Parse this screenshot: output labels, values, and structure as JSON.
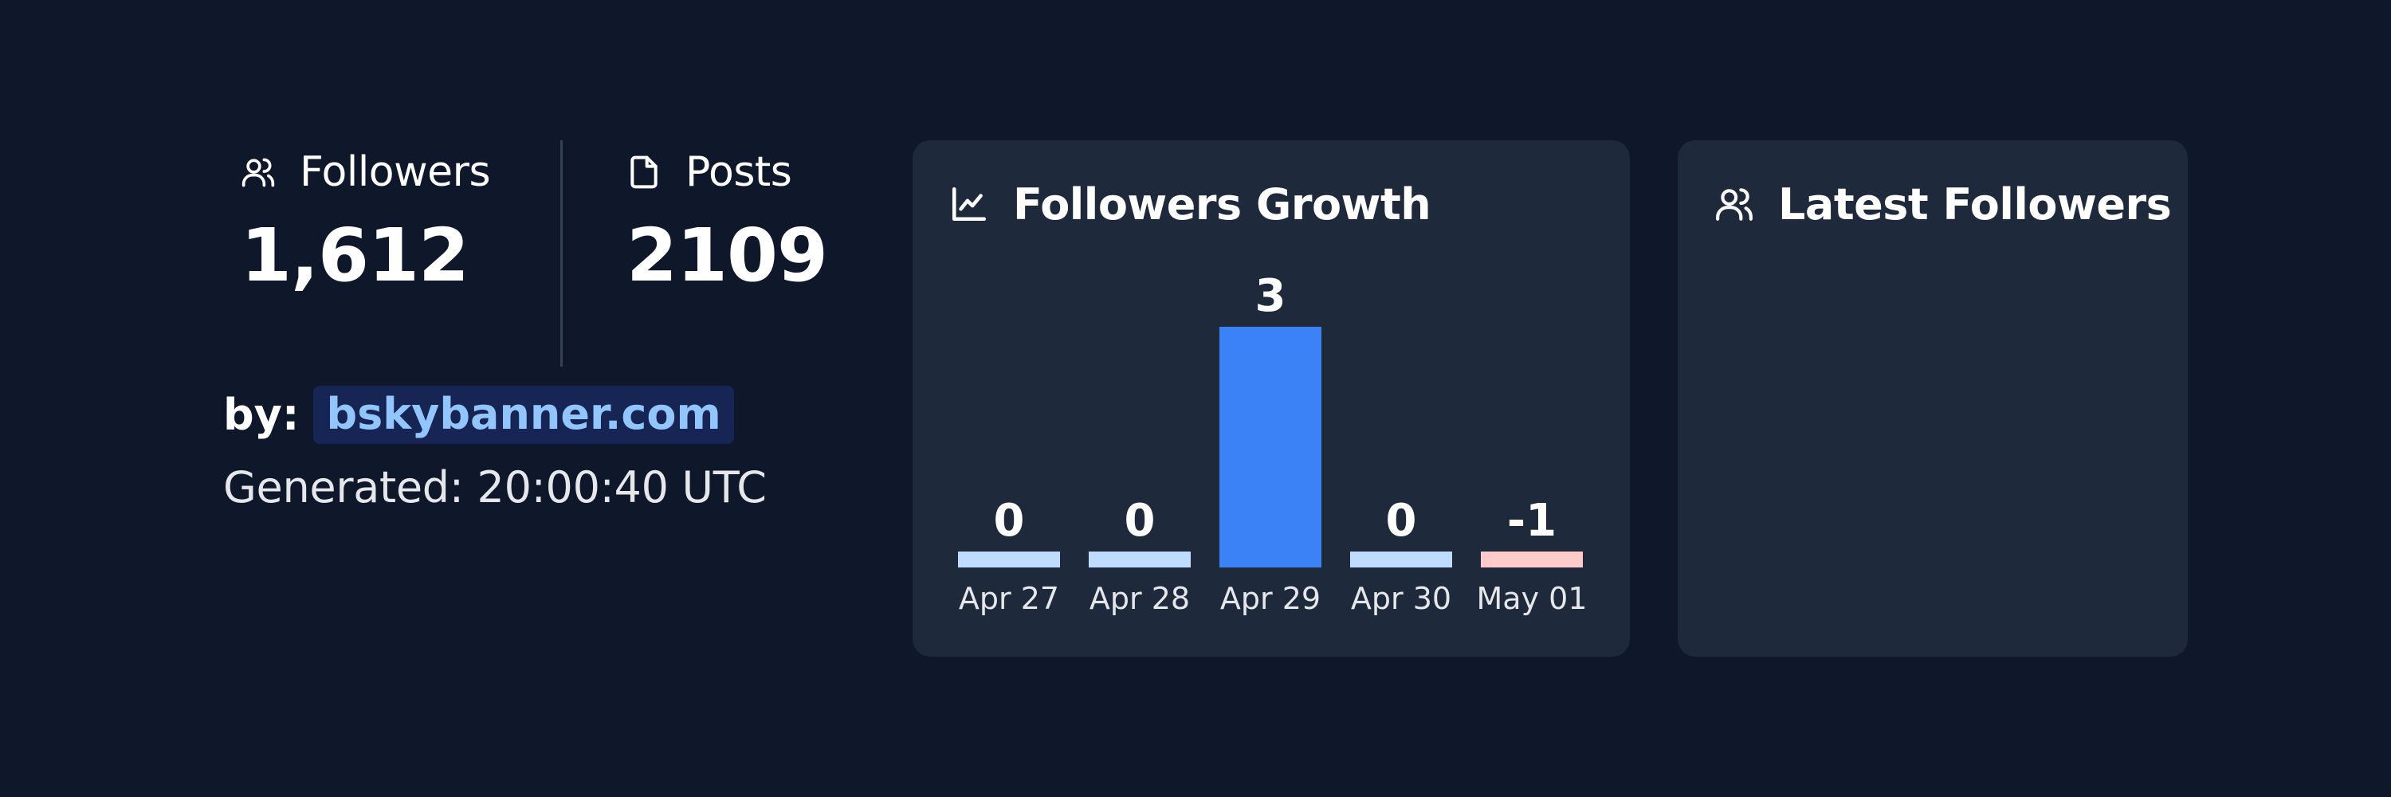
{
  "stats": {
    "followers": {
      "label": "Followers",
      "value": "1,612",
      "icon": "users-icon"
    },
    "posts": {
      "label": "Posts",
      "value": "2109",
      "icon": "file-icon"
    }
  },
  "attribution": {
    "by_label": "by:",
    "link_text": "bskybanner.com"
  },
  "generated": "Generated: 20:00:40 UTC",
  "growth_card": {
    "title": "Followers Growth",
    "icon": "line-chart-icon"
  },
  "latest_card": {
    "title": "Latest Followers",
    "icon": "users-icon"
  },
  "colors": {
    "background": "#0f172a",
    "card": "#1e293b",
    "accent_bar": "#3b82f6",
    "zero_bar": "#bfdbfe",
    "negative_bar": "#fecaca",
    "link": "#93c5fd"
  },
  "chart_data": {
    "type": "bar",
    "title": "Followers Growth",
    "categories": [
      "Apr 27",
      "Apr 28",
      "Apr 29",
      "Apr 30",
      "May 01"
    ],
    "values": [
      0,
      0,
      3,
      0,
      -1
    ],
    "data_labels": [
      "0",
      "0",
      "3",
      "0",
      "-1"
    ],
    "xlabel": "",
    "ylabel": "",
    "grid": false,
    "legend": "none"
  }
}
